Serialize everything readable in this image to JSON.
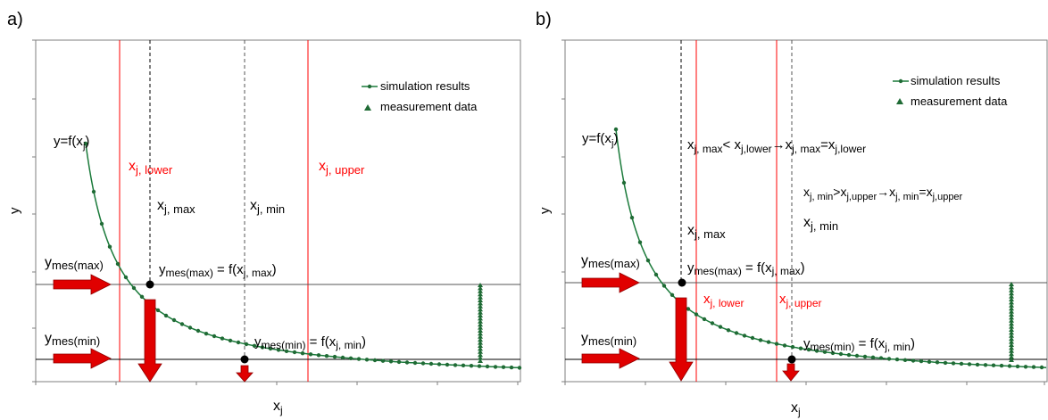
{
  "panel_a": {
    "label": "a)",
    "xlabel": "x",
    "xlabel_sub": "j",
    "ylabel": "y",
    "legend": {
      "sim": "simulation results",
      "meas": "measurement data"
    },
    "func_label": "y=f(x",
    "func_label_sub": "j",
    "func_label_end": ")",
    "lower_label": "x",
    "lower_sub": "j, lower",
    "upper_label": "x",
    "upper_sub": "j, upper",
    "xmax_label": "x",
    "xmax_sub": "j, max",
    "xmin_label": "x",
    "xmin_sub": "j, min",
    "ymax_label": "y",
    "ymax_sub": "mes(max)",
    "ymin_label": "y",
    "ymin_sub": "mes(min)",
    "eq_max": [
      "y",
      "mes(max)",
      " = f(x",
      "j, max",
      ")"
    ],
    "eq_min": [
      "y",
      "mes(min)",
      " = f(x",
      "j, min",
      ")"
    ]
  },
  "panel_b": {
    "label": "b)",
    "xlabel": "x",
    "xlabel_sub": "j",
    "ylabel": "y",
    "legend": {
      "sim": "simulation results",
      "meas": "measurement data"
    },
    "func_label": "y=f(x",
    "func_label_sub": "j",
    "func_label_end": ")",
    "rule1": [
      "x",
      "j, max",
      "< x",
      "j,lower",
      "→",
      "x",
      "j, max",
      "=x",
      "j,lower"
    ],
    "rule2": [
      "x",
      "j, min",
      ">x",
      "j,upper",
      "→",
      "x",
      "j, min",
      "=x",
      "j,upper"
    ],
    "xmax_label": "x",
    "xmax_sub": "j, max",
    "xmin_label": "x",
    "xmin_sub": "j, min",
    "lower_label": "x",
    "lower_sub": "j, lower",
    "upper_label": "x",
    "upper_sub": "j, upper",
    "ymax_label": "y",
    "ymax_sub": "mes(max)",
    "ymin_label": "y",
    "ymin_sub": "mes(min)",
    "eq_max": [
      "y",
      "mes(max)",
      " = f(x",
      "j, max",
      ")"
    ],
    "eq_min": [
      "y",
      "mes(min)",
      " = f(x",
      "j, min",
      ")"
    ]
  },
  "colors": {
    "curve": "#1a7a3a",
    "marker": "#1f6b35",
    "bound_line": "#ff0000",
    "bound_text": "#ff0000",
    "arrow": "#e00000",
    "axis": "#7f7f7f",
    "text": "#000000"
  }
}
